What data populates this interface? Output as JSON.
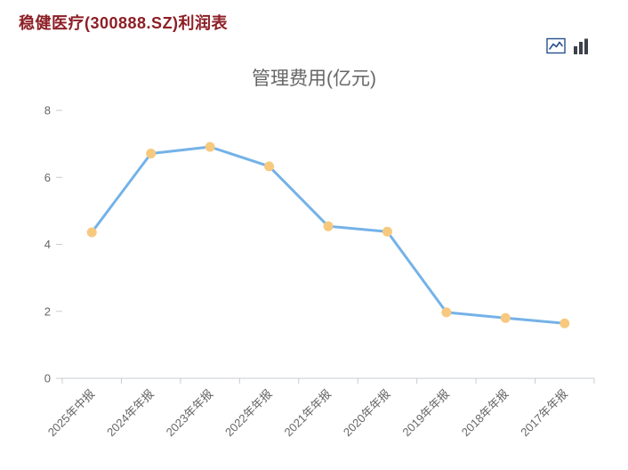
{
  "header": {
    "title": "稳健医疗(300888.SZ)利润表",
    "title_color": "#8d1f26"
  },
  "toolbar": {
    "line_icon": "line-chart-view",
    "bar_icon": "bar-chart-view",
    "line_icon_color": "#27508e",
    "bar_icon_color": "#3c414b"
  },
  "chart_data": {
    "type": "line",
    "title": "管理费用(亿元)",
    "categories": [
      "2025年中报",
      "2024年年报",
      "2023年年报",
      "2022年年报",
      "2021年年报",
      "2020年年报",
      "2019年年报",
      "2018年年报",
      "2017年年报"
    ],
    "values": [
      4.36,
      6.71,
      6.91,
      6.33,
      4.54,
      4.38,
      1.97,
      1.8,
      1.64
    ],
    "xlabel": "",
    "ylabel": "",
    "ylim": [
      0,
      8
    ],
    "yticks": [
      0,
      2,
      4,
      6,
      8
    ],
    "grid": false,
    "legend": "none",
    "x_label_rotation": -45,
    "line_color": "#74b2e8",
    "marker_color": "#f6c97f",
    "axis_color": "#c9ccd1",
    "label_color": "#666666"
  }
}
